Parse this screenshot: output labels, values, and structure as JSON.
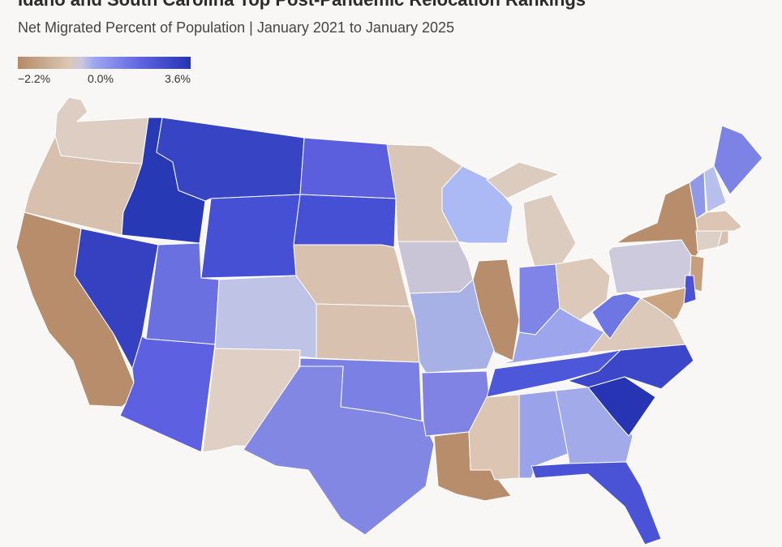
{
  "title": "Idaho and South Carolina Top Post-Pandemic Relocation Rankings",
  "subtitle": "Net Migrated Percent of Population | January 2021 to January 2025",
  "legend": {
    "min_label": "−2.2%",
    "mid_label": "0.0%",
    "max_label": "3.6%",
    "min_value": -2.2,
    "mid_value": 0.0,
    "max_value": 3.6,
    "colors": {
      "low": "#b58a65",
      "neutral": "#dbc7b7",
      "mid_blue": "#5d62e0",
      "high": "#2533b3"
    }
  },
  "states": [
    {
      "code": "WA",
      "name": "Washington",
      "color": "#ddcdc3"
    },
    {
      "code": "OR",
      "name": "Oregon",
      "color": "#d7c0ae"
    },
    {
      "code": "CA",
      "name": "California",
      "color": "#b88d6b"
    },
    {
      "code": "ID",
      "name": "Idaho",
      "color": "#2739b4"
    },
    {
      "code": "NV",
      "name": "Nevada",
      "color": "#3641c2"
    },
    {
      "code": "MT",
      "name": "Montana",
      "color": "#3745c4"
    },
    {
      "code": "WY",
      "name": "Wyoming",
      "color": "#4550d4"
    },
    {
      "code": "UT",
      "name": "Utah",
      "color": "#6a70e0"
    },
    {
      "code": "AZ",
      "name": "Arizona",
      "color": "#5c60e1"
    },
    {
      "code": "CO",
      "name": "Colorado",
      "color": "#bfc4e6"
    },
    {
      "code": "NM",
      "name": "New Mexico",
      "color": "#dfcfc4"
    },
    {
      "code": "ND",
      "name": "North Dakota",
      "color": "#5b5fde"
    },
    {
      "code": "SD",
      "name": "South Dakota",
      "color": "#4550d4"
    },
    {
      "code": "NE",
      "name": "Nebraska",
      "color": "#d8c1ae"
    },
    {
      "code": "KS",
      "name": "Kansas",
      "color": "#d8c1ae"
    },
    {
      "code": "OK",
      "name": "Oklahoma",
      "color": "#7a80e4"
    },
    {
      "code": "TX",
      "name": "Texas",
      "color": "#8287e4"
    },
    {
      "code": "MN",
      "name": "Minnesota",
      "color": "#dac6b6"
    },
    {
      "code": "IA",
      "name": "Iowa",
      "color": "#cac5d6"
    },
    {
      "code": "MO",
      "name": "Missouri",
      "color": "#a7b1e6"
    },
    {
      "code": "AR",
      "name": "Arkansas",
      "color": "#8083e3"
    },
    {
      "code": "LA",
      "name": "Louisiana",
      "color": "#b88d6b"
    },
    {
      "code": "WI",
      "name": "Wisconsin",
      "color": "#abb9f4"
    },
    {
      "code": "IL",
      "name": "Illinois",
      "color": "#b88d6b"
    },
    {
      "code": "MI",
      "name": "Michigan",
      "color": "#dcccc0"
    },
    {
      "code": "IN",
      "name": "Indiana",
      "color": "#7f84e6"
    },
    {
      "code": "OH",
      "name": "Ohio",
      "color": "#dcc9b9"
    },
    {
      "code": "KY",
      "name": "Kentucky",
      "color": "#9da6ec"
    },
    {
      "code": "TN",
      "name": "Tennessee",
      "color": "#4d57d9"
    },
    {
      "code": "MS",
      "name": "Mississippi",
      "color": "#dcc6b3"
    },
    {
      "code": "AL",
      "name": "Alabama",
      "color": "#9aa3ea"
    },
    {
      "code": "GA",
      "name": "Georgia",
      "color": "#a2aae9"
    },
    {
      "code": "FL",
      "name": "Florida",
      "color": "#4a52d6"
    },
    {
      "code": "SC",
      "name": "South Carolina",
      "color": "#2735b4"
    },
    {
      "code": "NC",
      "name": "North Carolina",
      "color": "#3b47c8"
    },
    {
      "code": "VA",
      "name": "Virginia",
      "color": "#dcc9b9"
    },
    {
      "code": "WV",
      "name": "West Virginia",
      "color": "#6d76e2"
    },
    {
      "code": "PA",
      "name": "Pennsylvania",
      "color": "#cdcadd"
    },
    {
      "code": "NY",
      "name": "New York",
      "color": "#b88d6b"
    },
    {
      "code": "VT",
      "name": "Vermont",
      "color": "#9099e8"
    },
    {
      "code": "NH",
      "name": "New Hampshire",
      "color": "#b7c0ed"
    },
    {
      "code": "ME",
      "name": "Maine",
      "color": "#7c83e4"
    },
    {
      "code": "MA",
      "name": "Massachusetts",
      "color": "#dcc6b3"
    },
    {
      "code": "CT",
      "name": "Connecticut",
      "color": "#ddd0c6"
    },
    {
      "code": "RI",
      "name": "Rhode Island",
      "color": "#d7c0ae"
    },
    {
      "code": "NJ",
      "name": "New Jersey",
      "color": "#c79e7e"
    },
    {
      "code": "DE",
      "name": "Delaware",
      "color": "#4c52d8"
    },
    {
      "code": "MD",
      "name": "Maryland",
      "color": "#caa381"
    }
  ]
}
